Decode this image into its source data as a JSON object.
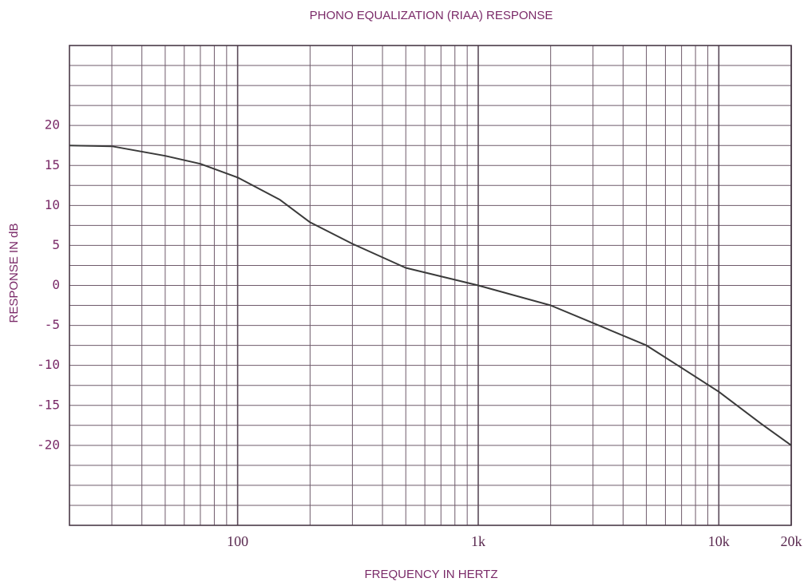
{
  "chart_data": {
    "type": "line",
    "title": "PHONO EQUALIZATION (RIAA) RESPONSE",
    "x_label": "FREQUENCY IN HERTZ",
    "y_label": "RESPONSE IN dB",
    "x_scale": "log",
    "xlim": [
      20,
      20000
    ],
    "ylim": [
      -30,
      30
    ],
    "xticks": [
      100,
      {
        "value": 1000,
        "label": "1k"
      },
      {
        "value": 10000,
        "label": "10k"
      },
      {
        "value": 20000,
        "label": "20k"
      }
    ],
    "yticks": [
      -20,
      -15,
      -10,
      -5,
      0,
      5,
      10,
      15,
      20
    ],
    "x_minor_grid": [
      20,
      30,
      40,
      50,
      60,
      70,
      80,
      90,
      200,
      300,
      400,
      500,
      600,
      700,
      800,
      900,
      2000,
      3000,
      4000,
      5000,
      6000,
      7000,
      8000,
      9000
    ],
    "y_minor_grid": [
      -30,
      -27.5,
      -25,
      -22.5,
      -17.5,
      -12.5,
      -7.5,
      -2.5,
      2.5,
      7.5,
      12.5,
      17.5,
      22.5,
      25,
      27.5,
      30
    ],
    "grid": true,
    "series": [
      {
        "name": "RIAA",
        "color": "#3a3a3a",
        "x": [
          20,
          30,
          50,
          70,
          100,
          150,
          200,
          300,
          500,
          1000,
          2000,
          3000,
          5000,
          7000,
          10000,
          15000,
          20000
        ],
        "values": [
          17.5,
          17.4,
          16.2,
          15.2,
          13.5,
          10.7,
          7.9,
          5.2,
          2.2,
          0,
          -2.5,
          -4.7,
          -7.5,
          -10.3,
          -13.3,
          -17.3,
          -20
        ]
      }
    ]
  }
}
